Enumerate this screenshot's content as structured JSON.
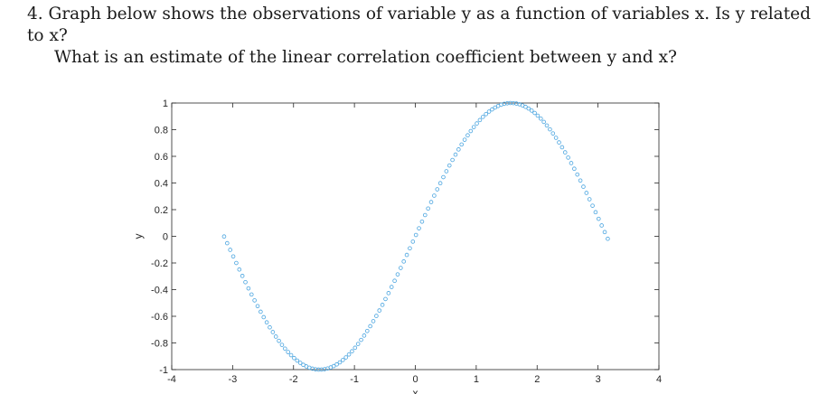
{
  "question": {
    "number": "4.",
    "line1": "Graph below shows the observations of variable y as a function of variables x. Is y related to x?",
    "line2": "What is an estimate of the linear correlation coefficient between y and x?"
  },
  "chart_data": {
    "type": "scatter",
    "title": "",
    "xlabel": "x",
    "ylabel": "y",
    "xlim": [
      -4,
      4
    ],
    "ylim": [
      -1,
      1
    ],
    "xticks": [
      -4,
      -3,
      -2,
      -1,
      0,
      1,
      2,
      3,
      4
    ],
    "yticks": [
      -1,
      -0.8,
      -0.6,
      -0.4,
      -0.2,
      0,
      0.2,
      0.4,
      0.6,
      0.8,
      1
    ],
    "xtick_labels": [
      "-4",
      "-3",
      "-2",
      "-1",
      "0",
      "1",
      "2",
      "3",
      "4"
    ],
    "ytick_labels": [
      "-1",
      "-0.8",
      "-0.6",
      "-0.4",
      "-0.2",
      "0",
      "0.2",
      "0.4",
      "0.6",
      "0.8",
      "1"
    ],
    "marker": "circle-open",
    "marker_color": "#4da6e0",
    "grid": false,
    "series": [
      {
        "relation": "y = sin(x)",
        "x_start": -3.14,
        "x_end": 3.14,
        "x_step": 0.05
      }
    ]
  }
}
